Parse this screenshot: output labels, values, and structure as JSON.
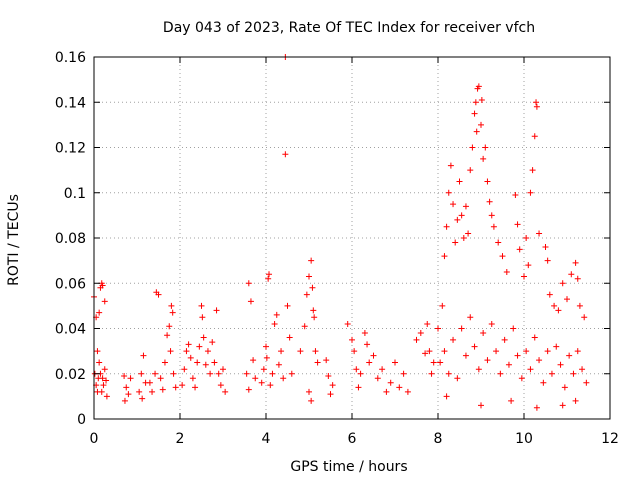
{
  "chart_data": {
    "type": "scatter",
    "title": "Day 043 of 2023, Rate Of TEC Index for receiver vfch",
    "xlabel": "GPS time / hours",
    "ylabel": "ROTI / TECUs",
    "xlim": [
      0,
      12
    ],
    "ylim": [
      0,
      0.16
    ],
    "xticks": [
      0,
      2,
      4,
      6,
      8,
      10,
      12
    ],
    "yticks": [
      0,
      0.02,
      0.04,
      0.06,
      0.08,
      0.1,
      0.12,
      0.14,
      0.16
    ],
    "xtick_labels": [
      "0",
      "2",
      "4",
      "6",
      "8",
      "10",
      "12"
    ],
    "ytick_labels": [
      "0",
      "0.02",
      "0.04",
      "0.06",
      "0.08",
      "0.1",
      "0.12",
      "0.14",
      "0.16"
    ],
    "grid": true,
    "marker": "+",
    "color": "#ff0000",
    "series": [
      {
        "name": "ROTI",
        "points": [
          [
            0.0,
            0.054
          ],
          [
            0.05,
            0.045
          ],
          [
            0.08,
            0.03
          ],
          [
            0.12,
            0.047
          ],
          [
            0.15,
            0.058
          ],
          [
            0.18,
            0.06
          ],
          [
            0.2,
            0.059
          ],
          [
            0.25,
            0.052
          ],
          [
            0.02,
            0.02
          ],
          [
            0.05,
            0.015
          ],
          [
            0.08,
            0.012
          ],
          [
            0.1,
            0.018
          ],
          [
            0.12,
            0.025
          ],
          [
            0.15,
            0.02
          ],
          [
            0.18,
            0.012
          ],
          [
            0.2,
            0.018
          ],
          [
            0.22,
            0.015
          ],
          [
            0.25,
            0.022
          ],
          [
            0.28,
            0.017
          ],
          [
            0.3,
            0.01
          ],
          [
            0.7,
            0.019
          ],
          [
            0.75,
            0.014
          ],
          [
            0.8,
            0.011
          ],
          [
            0.85,
            0.018
          ],
          [
            0.72,
            0.008
          ],
          [
            1.05,
            0.012
          ],
          [
            1.1,
            0.02
          ],
          [
            1.15,
            0.028
          ],
          [
            1.2,
            0.016
          ],
          [
            1.12,
            0.009
          ],
          [
            1.3,
            0.016
          ],
          [
            1.35,
            0.012
          ],
          [
            1.42,
            0.02
          ],
          [
            1.45,
            0.056
          ],
          [
            1.5,
            0.055
          ],
          [
            1.55,
            0.018
          ],
          [
            1.6,
            0.013
          ],
          [
            1.65,
            0.025
          ],
          [
            1.7,
            0.037
          ],
          [
            1.75,
            0.041
          ],
          [
            1.8,
            0.05
          ],
          [
            1.83,
            0.047
          ],
          [
            1.78,
            0.03
          ],
          [
            1.85,
            0.02
          ],
          [
            1.9,
            0.014
          ],
          [
            2.05,
            0.015
          ],
          [
            2.1,
            0.022
          ],
          [
            2.15,
            0.03
          ],
          [
            2.2,
            0.033
          ],
          [
            2.25,
            0.027
          ],
          [
            2.3,
            0.018
          ],
          [
            2.35,
            0.014
          ],
          [
            2.4,
            0.025
          ],
          [
            2.45,
            0.032
          ],
          [
            2.5,
            0.05
          ],
          [
            2.52,
            0.045
          ],
          [
            2.55,
            0.036
          ],
          [
            2.6,
            0.024
          ],
          [
            2.65,
            0.03
          ],
          [
            2.7,
            0.02
          ],
          [
            2.75,
            0.034
          ],
          [
            2.8,
            0.025
          ],
          [
            2.85,
            0.048
          ],
          [
            2.9,
            0.02
          ],
          [
            2.95,
            0.015
          ],
          [
            3.0,
            0.022
          ],
          [
            3.05,
            0.012
          ],
          [
            3.6,
            0.06
          ],
          [
            3.65,
            0.052
          ],
          [
            3.55,
            0.02
          ],
          [
            3.6,
            0.013
          ],
          [
            3.7,
            0.026
          ],
          [
            3.75,
            0.018
          ],
          [
            3.9,
            0.016
          ],
          [
            3.95,
            0.022
          ],
          [
            4.0,
            0.032
          ],
          [
            4.02,
            0.027
          ],
          [
            4.05,
            0.062
          ],
          [
            4.07,
            0.064
          ],
          [
            4.1,
            0.015
          ],
          [
            4.15,
            0.02
          ],
          [
            4.2,
            0.042
          ],
          [
            4.25,
            0.046
          ],
          [
            4.3,
            0.024
          ],
          [
            4.35,
            0.03
          ],
          [
            4.4,
            0.018
          ],
          [
            4.45,
            0.117
          ],
          [
            4.45,
            0.16
          ],
          [
            4.5,
            0.05
          ],
          [
            4.55,
            0.036
          ],
          [
            4.6,
            0.02
          ],
          [
            4.8,
            0.03
          ],
          [
            4.9,
            0.041
          ],
          [
            4.95,
            0.055
          ],
          [
            5.0,
            0.063
          ],
          [
            5.05,
            0.07
          ],
          [
            5.08,
            0.058
          ],
          [
            5.1,
            0.048
          ],
          [
            5.12,
            0.045
          ],
          [
            5.15,
            0.03
          ],
          [
            5.2,
            0.025
          ],
          [
            5.0,
            0.012
          ],
          [
            5.05,
            0.008
          ],
          [
            5.4,
            0.026
          ],
          [
            5.45,
            0.019
          ],
          [
            5.5,
            0.011
          ],
          [
            5.55,
            0.015
          ],
          [
            5.9,
            0.042
          ],
          [
            6.0,
            0.035
          ],
          [
            6.05,
            0.03
          ],
          [
            6.1,
            0.022
          ],
          [
            6.15,
            0.014
          ],
          [
            6.2,
            0.02
          ],
          [
            6.3,
            0.038
          ],
          [
            6.35,
            0.033
          ],
          [
            6.4,
            0.025
          ],
          [
            6.5,
            0.028
          ],
          [
            6.6,
            0.018
          ],
          [
            6.7,
            0.022
          ],
          [
            6.8,
            0.012
          ],
          [
            6.9,
            0.016
          ],
          [
            7.0,
            0.025
          ],
          [
            7.1,
            0.014
          ],
          [
            7.2,
            0.02
          ],
          [
            7.3,
            0.012
          ],
          [
            7.5,
            0.035
          ],
          [
            7.6,
            0.038
          ],
          [
            7.7,
            0.029
          ],
          [
            7.75,
            0.042
          ],
          [
            7.8,
            0.03
          ],
          [
            7.85,
            0.02
          ],
          [
            7.9,
            0.025
          ],
          [
            8.0,
            0.04
          ],
          [
            8.1,
            0.05
          ],
          [
            8.15,
            0.072
          ],
          [
            8.2,
            0.085
          ],
          [
            8.25,
            0.1
          ],
          [
            8.3,
            0.112
          ],
          [
            8.35,
            0.095
          ],
          [
            8.4,
            0.078
          ],
          [
            8.45,
            0.088
          ],
          [
            8.5,
            0.105
          ],
          [
            8.55,
            0.09
          ],
          [
            8.6,
            0.08
          ],
          [
            8.65,
            0.094
          ],
          [
            8.7,
            0.082
          ],
          [
            8.75,
            0.11
          ],
          [
            8.8,
            0.12
          ],
          [
            8.85,
            0.135
          ],
          [
            8.88,
            0.14
          ],
          [
            8.9,
            0.127
          ],
          [
            8.92,
            0.146
          ],
          [
            8.95,
            0.147
          ],
          [
            9.0,
            0.13
          ],
          [
            9.02,
            0.141
          ],
          [
            9.05,
            0.115
          ],
          [
            9.1,
            0.12
          ],
          [
            9.15,
            0.105
          ],
          [
            9.2,
            0.096
          ],
          [
            9.25,
            0.09
          ],
          [
            9.3,
            0.085
          ],
          [
            9.4,
            0.078
          ],
          [
            9.5,
            0.072
          ],
          [
            9.6,
            0.065
          ],
          [
            9.8,
            0.099
          ],
          [
            9.85,
            0.086
          ],
          [
            9.9,
            0.075
          ],
          [
            10.0,
            0.063
          ],
          [
            10.05,
            0.08
          ],
          [
            10.1,
            0.068
          ],
          [
            10.15,
            0.1
          ],
          [
            10.2,
            0.11
          ],
          [
            10.25,
            0.125
          ],
          [
            10.3,
            0.138
          ],
          [
            10.28,
            0.14
          ],
          [
            10.35,
            0.082
          ],
          [
            10.5,
            0.076
          ],
          [
            10.55,
            0.07
          ],
          [
            10.6,
            0.055
          ],
          [
            10.7,
            0.05
          ],
          [
            10.8,
            0.048
          ],
          [
            10.9,
            0.06
          ],
          [
            11.0,
            0.053
          ],
          [
            11.1,
            0.064
          ],
          [
            11.2,
            0.069
          ],
          [
            11.25,
            0.062
          ],
          [
            11.3,
            0.05
          ],
          [
            11.4,
            0.045
          ],
          [
            8.05,
            0.025
          ],
          [
            8.15,
            0.03
          ],
          [
            8.25,
            0.02
          ],
          [
            8.35,
            0.035
          ],
          [
            8.45,
            0.018
          ],
          [
            8.55,
            0.04
          ],
          [
            8.65,
            0.028
          ],
          [
            8.75,
            0.045
          ],
          [
            8.85,
            0.032
          ],
          [
            8.95,
            0.022
          ],
          [
            9.05,
            0.038
          ],
          [
            9.15,
            0.026
          ],
          [
            9.25,
            0.042
          ],
          [
            9.35,
            0.03
          ],
          [
            9.45,
            0.02
          ],
          [
            9.55,
            0.035
          ],
          [
            9.65,
            0.024
          ],
          [
            9.75,
            0.04
          ],
          [
            9.85,
            0.028
          ],
          [
            9.95,
            0.018
          ],
          [
            10.05,
            0.03
          ],
          [
            10.15,
            0.022
          ],
          [
            10.25,
            0.036
          ],
          [
            10.35,
            0.026
          ],
          [
            10.45,
            0.016
          ],
          [
            10.55,
            0.03
          ],
          [
            10.65,
            0.02
          ],
          [
            10.75,
            0.032
          ],
          [
            10.85,
            0.024
          ],
          [
            10.95,
            0.014
          ],
          [
            11.05,
            0.028
          ],
          [
            11.15,
            0.02
          ],
          [
            11.25,
            0.03
          ],
          [
            11.35,
            0.022
          ],
          [
            11.45,
            0.016
          ],
          [
            9.7,
            0.008
          ],
          [
            10.3,
            0.005
          ],
          [
            10.9,
            0.006
          ],
          [
            11.2,
            0.008
          ],
          [
            8.2,
            0.01
          ],
          [
            9.0,
            0.006
          ]
        ]
      }
    ]
  }
}
